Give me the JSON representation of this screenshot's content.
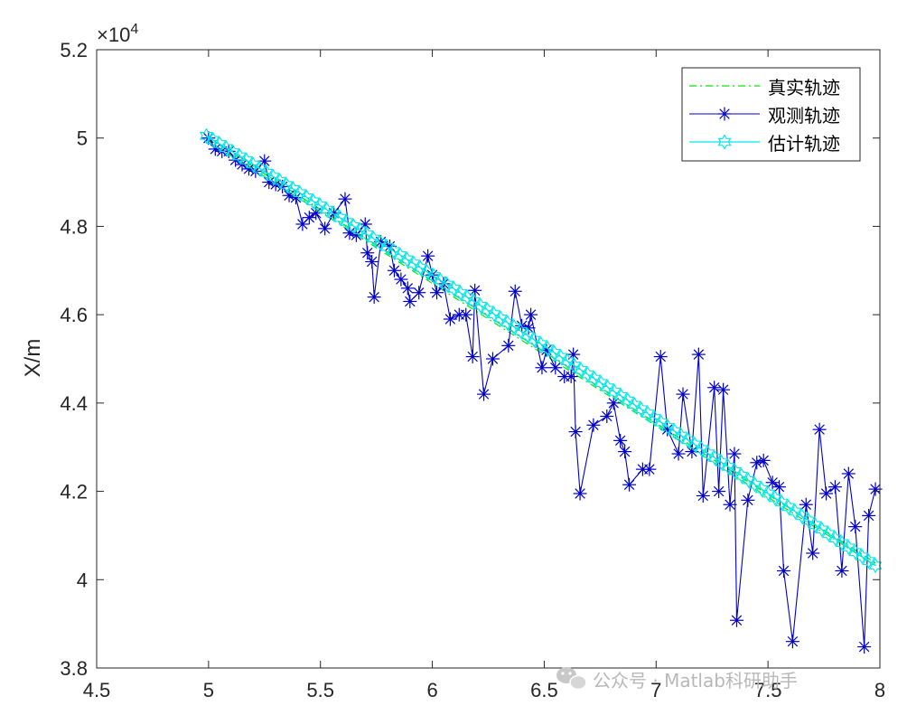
{
  "chart_data": {
    "type": "line",
    "xlim": [
      4.5,
      8
    ],
    "ylim": [
      38000,
      52000
    ],
    "xticks": [
      4.5,
      5,
      5.5,
      6,
      6.5,
      7,
      7.5,
      8
    ],
    "yticks": [
      38000,
      40000,
      42000,
      44000,
      46000,
      48000,
      50000,
      52000
    ],
    "ytick_labels": [
      "3.8",
      "4",
      "4.2",
      "4.4",
      "4.6",
      "4.8",
      "5",
      "5.2"
    ],
    "y_exponent_label": "×10",
    "y_exponent_power": "4",
    "ylabel": "X/m",
    "xlabel": "",
    "grid": false,
    "legend_position": "top-right",
    "series": [
      {
        "name": "真实轨迹",
        "color": "#00e600",
        "style": "dashdot",
        "marker": "none",
        "start": [
          4.99,
          50030
        ],
        "end": [
          7.98,
          40380
        ],
        "bend": 0
      },
      {
        "name": "观测轨迹",
        "color": "#0000cc",
        "style": "solid",
        "marker": "asterisk",
        "x": [
          5.0,
          5.03,
          5.06,
          5.09,
          5.12,
          5.15,
          5.18,
          5.21,
          5.25,
          5.27,
          5.3,
          5.33,
          5.36,
          5.39,
          5.42,
          5.45,
          5.48,
          5.52,
          5.56,
          5.61,
          5.63,
          5.66,
          5.7,
          5.71,
          5.73,
          5.74,
          5.77,
          5.81,
          5.83,
          5.86,
          5.89,
          5.9,
          5.94,
          5.98,
          6.0,
          6.02,
          6.05,
          6.08,
          6.12,
          6.15,
          6.18,
          6.19,
          6.23,
          6.27,
          6.34,
          6.37,
          6.4,
          6.43,
          6.44,
          6.49,
          6.51,
          6.55,
          6.59,
          6.62,
          6.63,
          6.64,
          6.66,
          6.72,
          6.78,
          6.81,
          6.84,
          6.86,
          6.88,
          6.94,
          6.97,
          7.02,
          7.05,
          7.1,
          7.12,
          7.16,
          7.19,
          7.21,
          7.26,
          7.28,
          7.3,
          7.33,
          7.35,
          7.36,
          7.41,
          7.45,
          7.48,
          7.52,
          7.55,
          7.57,
          7.61,
          7.67,
          7.7,
          7.73,
          7.76,
          7.8,
          7.83,
          7.86,
          7.89,
          7.93,
          7.95,
          7.98
        ],
        "y": [
          50000,
          49750,
          49700,
          49700,
          49500,
          49400,
          49300,
          49250,
          49480,
          49000,
          48950,
          48900,
          48700,
          48650,
          48050,
          48200,
          48300,
          47950,
          48300,
          48620,
          47850,
          47800,
          48050,
          47400,
          47200,
          46400,
          47650,
          47550,
          47000,
          46800,
          46600,
          46300,
          46500,
          47330,
          46900,
          46500,
          46700,
          45900,
          46000,
          46000,
          45050,
          46550,
          44200,
          45000,
          45300,
          46530,
          45750,
          45700,
          46000,
          44800,
          45200,
          44800,
          44600,
          44600,
          45100,
          43350,
          41950,
          43500,
          43700,
          44000,
          43150,
          42900,
          42150,
          42500,
          42500,
          45050,
          43400,
          42850,
          44200,
          42900,
          45100,
          41900,
          44350,
          42000,
          44300,
          41700,
          42850,
          39080,
          41800,
          42650,
          42700,
          42200,
          42100,
          40200,
          38600,
          41700,
          40600,
          43400,
          41950,
          42100,
          40200,
          42400,
          41200,
          38480,
          41450,
          42050
        ]
      },
      {
        "name": "估计轨迹",
        "color": "#00e6e6",
        "style": "solid",
        "marker": "hexagram",
        "start": [
          4.99,
          50050
        ],
        "end": [
          7.98,
          40320
        ],
        "bend": 150
      }
    ]
  },
  "watermark": {
    "text": "公众号 · Matlab科研助手"
  }
}
